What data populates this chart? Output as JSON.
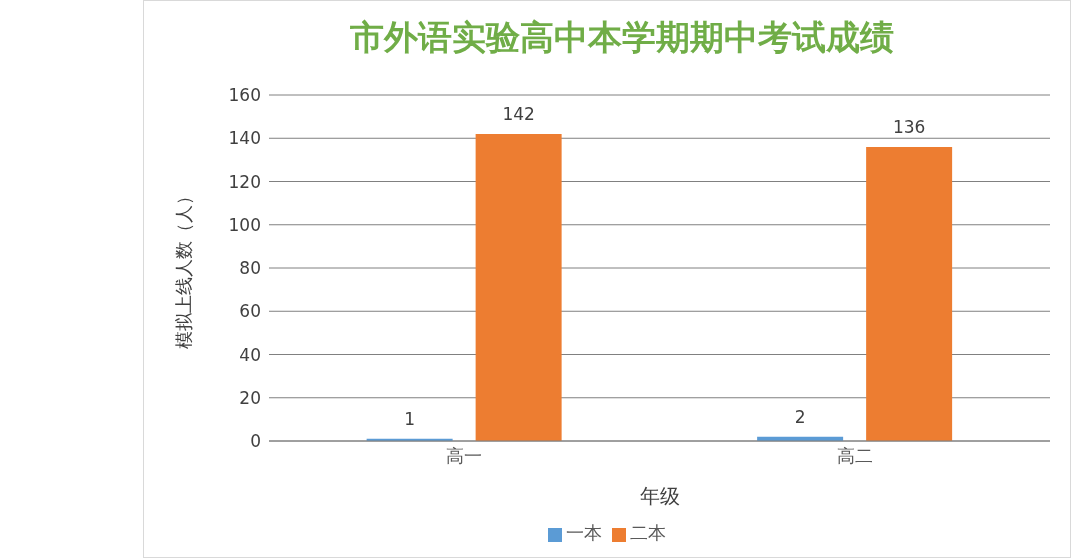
{
  "chart_data": {
    "type": "bar",
    "title": "市外语实验高中本学期期中考试成绩",
    "xlabel": "年级",
    "ylabel": "模拟上线人数（人）",
    "categories": [
      "高一",
      "高二"
    ],
    "series": [
      {
        "name": "一本",
        "color": "#5b9bd5",
        "values": [
          1,
          2
        ]
      },
      {
        "name": "二本",
        "color": "#ed7d31",
        "values": [
          142,
          136
        ]
      }
    ],
    "ylim": [
      0,
      160
    ],
    "yticks": [
      0,
      20,
      40,
      60,
      80,
      100,
      120,
      140,
      160
    ],
    "grid": "y",
    "legend": "bottom",
    "data_labels": true
  }
}
